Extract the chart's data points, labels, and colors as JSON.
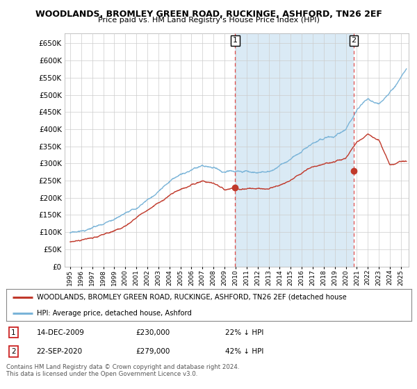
{
  "title": "WOODLANDS, BROMLEY GREEN ROAD, RUCKINGE, ASHFORD, TN26 2EF",
  "subtitle": "Price paid vs. HM Land Registry's House Price Index (HPI)",
  "hpi_color": "#7ab4d8",
  "price_color": "#c0392b",
  "vline_color": "#e05050",
  "shade_color": "#daeaf5",
  "background_color": "#ffffff",
  "grid_color": "#cccccc",
  "ylim": [
    0,
    680000
  ],
  "yticks": [
    0,
    50000,
    100000,
    150000,
    200000,
    250000,
    300000,
    350000,
    400000,
    450000,
    500000,
    550000,
    600000,
    650000
  ],
  "xlim_start": 1994.5,
  "xlim_end": 2025.7,
  "sale1_x": 2009.96,
  "sale1_y": 230000,
  "sale2_x": 2020.72,
  "sale2_y": 279000,
  "legend_line1": "WOODLANDS, BROMLEY GREEN ROAD, RUCKINGE, ASHFORD, TN26 2EF (detached house",
  "legend_line2": "HPI: Average price, detached house, Ashford",
  "table_row1_num": "1",
  "table_row1_date": "14-DEC-2009",
  "table_row1_price": "£230,000",
  "table_row1_hpi": "22% ↓ HPI",
  "table_row2_num": "2",
  "table_row2_date": "22-SEP-2020",
  "table_row2_price": "£279,000",
  "table_row2_hpi": "42% ↓ HPI",
  "footer": "Contains HM Land Registry data © Crown copyright and database right 2024.\nThis data is licensed under the Open Government Licence v3.0."
}
